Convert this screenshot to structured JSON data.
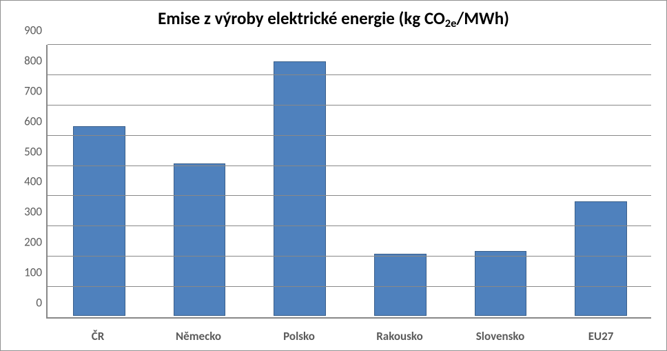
{
  "chart": {
    "type": "bar",
    "title_parts": {
      "prefix": "Emise z výroby elektrické energie (kg CO",
      "sub": "2e",
      "suffix": "/MWh)"
    },
    "title_fontsize": 25,
    "title_fontweight": "bold",
    "title_color": "#000000",
    "background_color": "#ffffff",
    "border_color": "#888888",
    "categories": [
      "ČR",
      "Německo",
      "Polsko",
      "Rakousko",
      "Slovensko",
      "EU27"
    ],
    "values": [
      630,
      505,
      845,
      205,
      215,
      380
    ],
    "bar_color": "#4f81bd",
    "bar_border_color": "#3a5f8a",
    "bar_width": 0.52,
    "ylim": [
      0,
      900
    ],
    "ytick_step": 100,
    "yticks": [
      0,
      100,
      200,
      300,
      400,
      500,
      600,
      700,
      800,
      900
    ],
    "grid_color": "#888888",
    "axis_color": "#888888",
    "ytick_fontsize": 17,
    "ytick_color": "#5b5b5b",
    "xlabel_fontsize": 17,
    "xlabel_fontweight": "bold",
    "xlabel_color": "#5b5b5b"
  }
}
